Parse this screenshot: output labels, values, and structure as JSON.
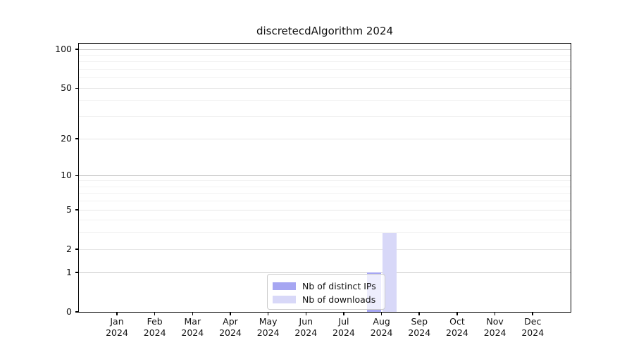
{
  "chart_data": {
    "type": "bar",
    "title": "discretecdAlgorithm 2024",
    "categories": [
      "Jan 2024",
      "Feb 2024",
      "Mar 2024",
      "Apr 2024",
      "May 2024",
      "Jun 2024",
      "Jul 2024",
      "Aug 2024",
      "Sep 2024",
      "Oct 2024",
      "Nov 2024",
      "Dec 2024"
    ],
    "series": [
      {
        "name": "Nb of distinct IPs",
        "color": "#a6a6f2",
        "values": [
          0,
          0,
          0,
          0,
          0,
          0,
          0,
          1,
          0,
          0,
          0,
          0
        ]
      },
      {
        "name": "Nb of downloads",
        "color": "#d8d8f8",
        "values": [
          0,
          0,
          0,
          0,
          0,
          0,
          0,
          3,
          0,
          0,
          0,
          0
        ]
      }
    ],
    "xlabel": "",
    "ylabel": "",
    "yscale": "symlog log10(1+x)",
    "y_ticks": [
      0,
      1,
      2,
      5,
      10,
      20,
      50,
      100
    ],
    "y_minor_gridlines": [
      3,
      4,
      6,
      7,
      8,
      9,
      30,
      40,
      60,
      70,
      80,
      90
    ],
    "ylim": [
      0,
      111
    ],
    "grid": true,
    "legend_position": "lower center",
    "colors": {
      "grid_major": "#c9c9c9",
      "grid_mid": "#e6e6e6",
      "grid_minor": "#f2f2f2",
      "axis": "#000000"
    }
  }
}
